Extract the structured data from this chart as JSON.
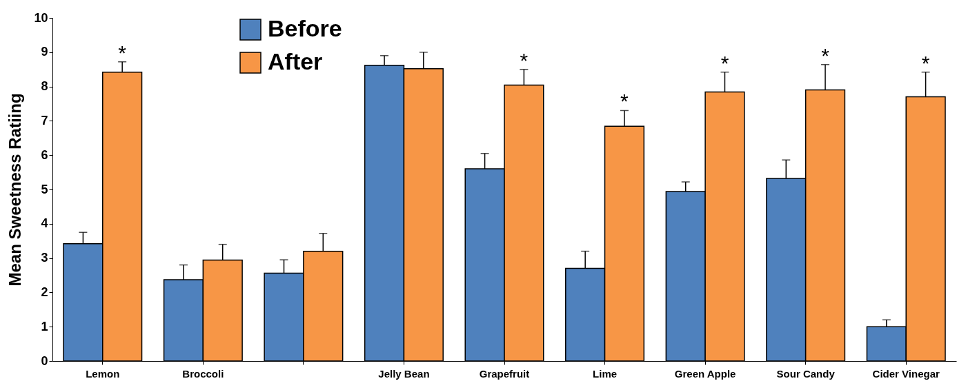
{
  "chart_data": {
    "type": "bar",
    "ylabel": "Mean Sweetness Ratiing",
    "categories": [
      "Lemon",
      "Broccoli",
      null,
      "Jelly Bean",
      "Grapefruit",
      "Lime",
      "Green Apple",
      "Sour Candy",
      "Cider Vinegar"
    ],
    "series": [
      {
        "name": "Before",
        "color": "#4f81bd",
        "values": [
          3.42,
          2.37,
          2.56,
          8.62,
          5.6,
          2.7,
          4.94,
          5.32,
          1.0
        ],
        "errors": [
          [
            3.42,
            3.75
          ],
          [
            2.37,
            2.8
          ],
          [
            2.56,
            2.95
          ],
          [
            8.62,
            8.9
          ],
          [
            5.6,
            6.05
          ],
          [
            2.7,
            3.2
          ],
          [
            4.94,
            5.22
          ],
          [
            5.32,
            5.86
          ],
          [
            1.0,
            1.2
          ]
        ]
      },
      {
        "name": "After",
        "color": "#f79646",
        "values": [
          8.42,
          2.94,
          3.2,
          8.52,
          8.04,
          6.84,
          7.84,
          7.9,
          7.7
        ],
        "errors": [
          [
            8.42,
            8.72
          ],
          [
            2.94,
            3.4
          ],
          [
            3.2,
            3.72
          ],
          [
            8.52,
            9.0
          ],
          [
            8.04,
            8.5
          ],
          [
            6.84,
            7.3
          ],
          [
            7.84,
            8.42
          ],
          [
            7.9,
            8.64
          ],
          [
            7.7,
            8.42
          ]
        ]
      }
    ],
    "ylim": [
      0,
      10
    ],
    "yticks": [
      0,
      1,
      2,
      3,
      4,
      5,
      6,
      7,
      8,
      9,
      10
    ],
    "grid": false,
    "legend": "top left",
    "annotations": [
      {
        "text": "*",
        "x": "Lemon",
        "y": 8.42
      },
      {
        "text": "*",
        "x": "Grapefruit",
        "y": 8.04
      },
      {
        "text": "*",
        "x": "Lime",
        "y": 6.84
      },
      {
        "text": "*",
        "x": "Green Apple",
        "y": 7.84
      },
      {
        "text": "*",
        "x": "Sour Candy",
        "y": 7.9
      },
      {
        "text": "*",
        "x": "Cider Vinegar",
        "y": 7.7
      }
    ]
  }
}
